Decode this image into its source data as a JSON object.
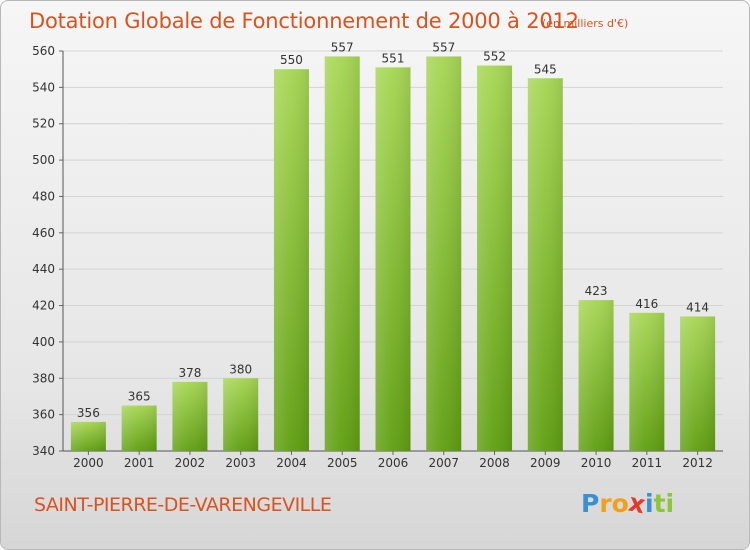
{
  "title": "Dotation Globale de Fonctionnement de 2000 à 2012",
  "unit_note": "(en milliers d'€)",
  "city": "SAINT-PIERRE-DE-VARENGEVILLE",
  "logo": {
    "text": "Proxiti",
    "letters": [
      "P",
      "r",
      "o",
      "x",
      "i",
      "t",
      "i"
    ],
    "colors": [
      "#3a8fd0",
      "#f2a01c",
      "#f2a01c",
      "#e23b2c",
      "#3a8fd0",
      "#8cc63f",
      "#8cc63f"
    ]
  },
  "colors": {
    "accent": "#d9531e",
    "bar_top": "#a6d653",
    "bar_bottom": "#5f9e10",
    "grid": "#d4d4d4",
    "axis_text": "#333333"
  },
  "chart_data": {
    "type": "bar",
    "title": "Dotation Globale de Fonctionnement de 2000 à 2012",
    "subtitle": "(en milliers d'€)",
    "xlabel": "",
    "ylabel": "",
    "categories": [
      "2000",
      "2001",
      "2002",
      "2003",
      "2004",
      "2005",
      "2006",
      "2007",
      "2008",
      "2009",
      "2010",
      "2011",
      "2012"
    ],
    "values": [
      356,
      365,
      378,
      380,
      550,
      557,
      551,
      557,
      552,
      545,
      423,
      416,
      414
    ],
    "ylim": [
      340,
      560
    ],
    "yticks": [
      340,
      360,
      380,
      400,
      420,
      440,
      460,
      480,
      500,
      520,
      540,
      560
    ],
    "grid": true,
    "data_labels": true
  }
}
